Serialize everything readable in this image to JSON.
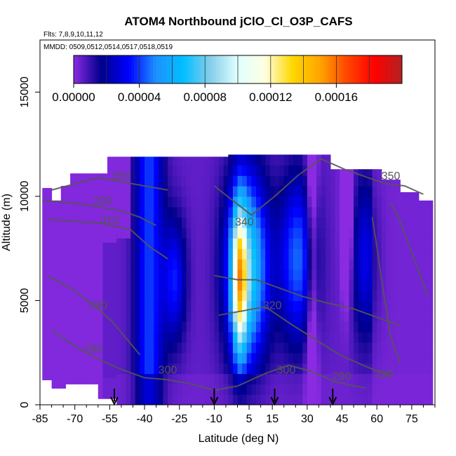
{
  "chart_data": {
    "type": "heatmap",
    "title": "ATOM4 Northbound jClO_Cl_O3P_CAFS",
    "flights_label": "Flts: 7,8,9,10,11,12",
    "dates_label": "MMDD: 0509,0512,0514,0517,0518,0519",
    "xlabel": "Latitude (deg N)",
    "ylabel": "Altitude (m)",
    "xlim": [
      -85,
      85
    ],
    "ylim": [
      0,
      17500
    ],
    "x_ticks": [
      -85,
      -70,
      -55,
      -40,
      -25,
      -10,
      5,
      15,
      30,
      45,
      60,
      75
    ],
    "x_tick_labels": [
      "-85",
      "-70",
      "-55",
      "-40",
      "-25",
      "-10",
      "5",
      "15",
      "30",
      "45",
      "60",
      "75"
    ],
    "y_ticks": [
      0,
      5000,
      10000,
      15000
    ],
    "y_tick_labels": [
      "0",
      "5000",
      "10000",
      "15000"
    ],
    "colorbar": {
      "min": 0,
      "max": 0.0002,
      "ticks": [
        0,
        4e-05,
        8e-05,
        0.00012,
        0.00016
      ],
      "tick_labels": [
        "0.00000",
        "0.00004",
        "0.00008",
        "0.00012",
        "0.00016"
      ],
      "colors": [
        "#8a2be2",
        "#00008b",
        "#0000ff",
        "#1e90ff",
        "#00bfff",
        "#87ceeb",
        "#e0ffff",
        "#ffffe0",
        "#ffd700",
        "#ffa500",
        "#ff4500",
        "#ff0000",
        "#b22222"
      ]
    },
    "contour_labels": [
      {
        "text": "350",
        "lat": -50,
        "alt": 10800
      },
      {
        "text": "330",
        "lat": -58,
        "alt": 9600
      },
      {
        "text": "310",
        "lat": -55,
        "alt": 8700
      },
      {
        "text": "290",
        "lat": -60,
        "alt": 4600
      },
      {
        "text": "280",
        "lat": -62,
        "alt": 2500
      },
      {
        "text": "300",
        "lat": -30,
        "alt": 1500
      },
      {
        "text": "340",
        "lat": 3,
        "alt": 8600
      },
      {
        "text": "320",
        "lat": 15,
        "alt": 4600
      },
      {
        "text": "300",
        "lat": 21,
        "alt": 1500
      },
      {
        "text": "290",
        "lat": 45,
        "alt": 1200
      },
      {
        "text": "280",
        "lat": 63,
        "alt": 1300
      },
      {
        "text": "350",
        "lat": 66,
        "alt": 10800
      }
    ],
    "arrow_markers_lat": [
      -53,
      -10,
      16,
      41
    ]
  }
}
